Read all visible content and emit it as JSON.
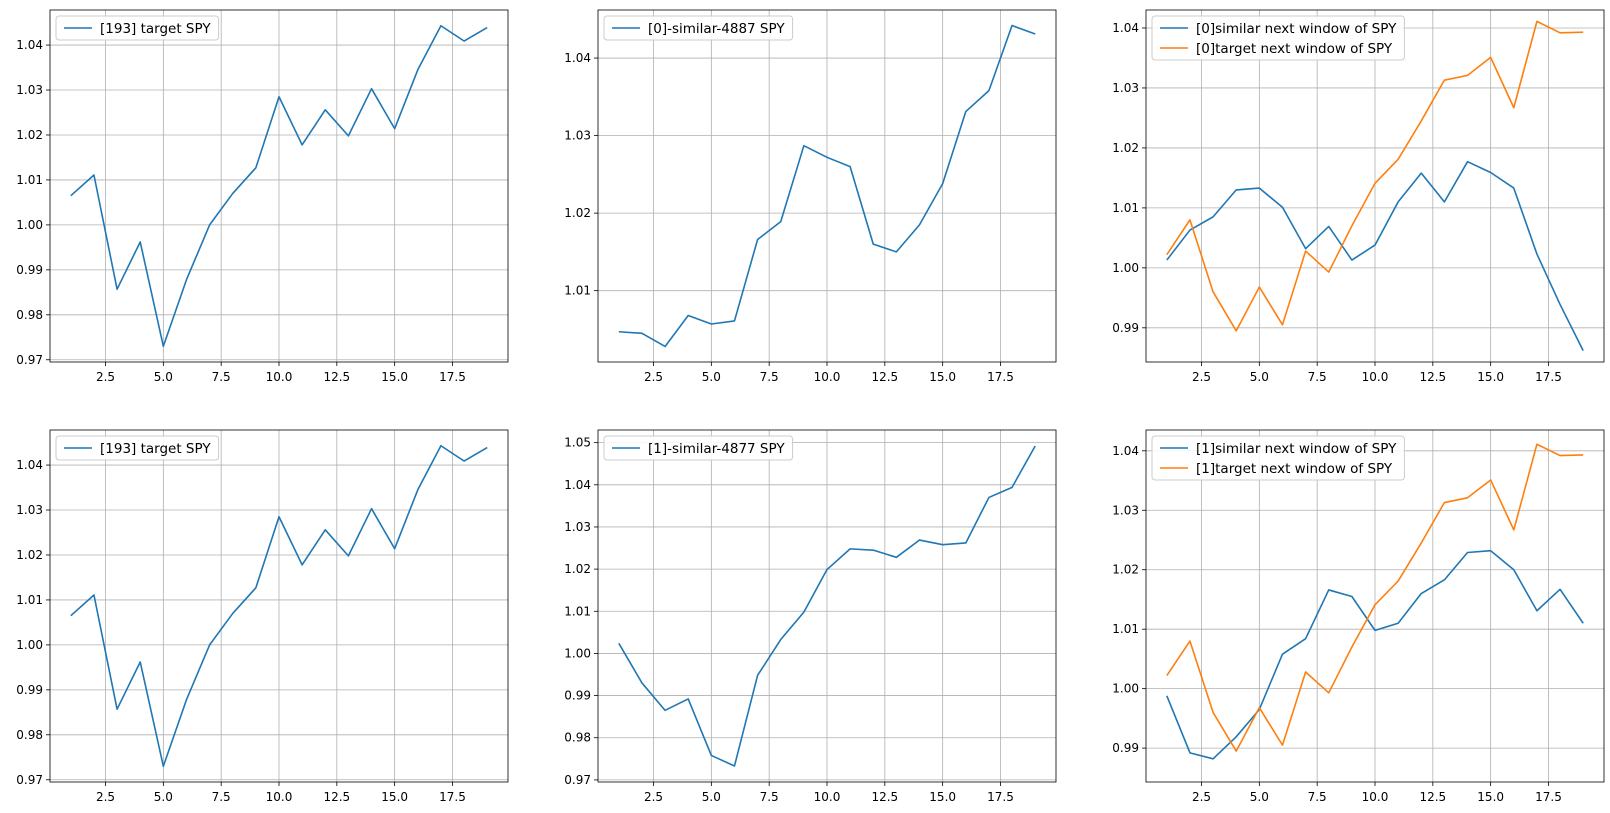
{
  "chart_data": [
    {
      "type": "line",
      "x": [
        1,
        2,
        3,
        4,
        5,
        6,
        7,
        8,
        9,
        10,
        11,
        12,
        13,
        14,
        15,
        16,
        17,
        18,
        19
      ],
      "series": [
        {
          "name": "[193] target SPY",
          "color": "#1f77b4",
          "values": [
            1.0065,
            1.0111,
            0.9857,
            0.9962,
            0.973,
            0.9878,
            1.0,
            1.007,
            1.0127,
            1.0285,
            1.0178,
            1.0256,
            1.0198,
            1.0303,
            1.0214,
            1.0345,
            1.0443,
            1.0409,
            1.0439
          ]
        }
      ],
      "xticks": [
        2.5,
        5.0,
        7.5,
        10.0,
        12.5,
        15.0,
        17.5
      ],
      "xtick_labels": [
        "2.5",
        "5.0",
        "7.5",
        "10.0",
        "12.5",
        "15.0",
        "17.5"
      ],
      "yticks": [
        0.97,
        0.98,
        0.99,
        1.0,
        1.01,
        1.02,
        1.03,
        1.04
      ],
      "ytick_labels": [
        "0.97",
        "0.98",
        "0.99",
        "1.00",
        "1.01",
        "1.02",
        "1.03",
        "1.04"
      ],
      "xlim": [
        0.1,
        19.9
      ],
      "ylim": [
        0.9695,
        1.0478
      ],
      "grid": true,
      "legend": "upper-left"
    },
    {
      "type": "line",
      "x": [
        1,
        2,
        3,
        4,
        5,
        6,
        7,
        8,
        9,
        10,
        11,
        12,
        13,
        14,
        15,
        16,
        17,
        18,
        19
      ],
      "series": [
        {
          "name": "[0]-similar-4887 SPY",
          "color": "#1f77b4",
          "values": [
            1.0047,
            1.0045,
            1.0028,
            1.0068,
            1.0057,
            1.0061,
            1.0166,
            1.0189,
            1.0287,
            1.0272,
            1.026,
            1.016,
            1.015,
            1.0185,
            1.0238,
            1.0331,
            1.0358,
            1.0442,
            1.0431
          ]
        }
      ],
      "xticks": [
        2.5,
        5.0,
        7.5,
        10.0,
        12.5,
        15.0,
        17.5
      ],
      "xtick_labels": [
        "2.5",
        "5.0",
        "7.5",
        "10.0",
        "12.5",
        "15.0",
        "17.5"
      ],
      "yticks": [
        1.01,
        1.02,
        1.03,
        1.04
      ],
      "ytick_labels": [
        "1.01",
        "1.02",
        "1.03",
        "1.04"
      ],
      "xlim": [
        0.1,
        19.9
      ],
      "ylim": [
        1.0008,
        1.0462
      ],
      "grid": true,
      "legend": "upper-left"
    },
    {
      "type": "line",
      "x": [
        1,
        2,
        3,
        4,
        5,
        6,
        7,
        8,
        9,
        10,
        11,
        12,
        13,
        14,
        15,
        16,
        17,
        18,
        19
      ],
      "series": [
        {
          "name": "[0]similar next window of SPY",
          "color": "#1f77b4",
          "values": [
            1.0013,
            1.0063,
            1.0085,
            1.013,
            1.0133,
            1.0101,
            1.0032,
            1.0069,
            1.0013,
            1.0038,
            1.011,
            1.0158,
            1.011,
            1.0177,
            1.0159,
            1.0133,
            1.0023,
            0.9939,
            0.9862
          ]
        },
        {
          "name": "[0]target next window of SPY",
          "color": "#ff7f0e",
          "values": [
            1.0022,
            1.008,
            0.996,
            0.9895,
            0.9968,
            0.9905,
            1.0028,
            0.9993,
            1.007,
            1.0141,
            1.0181,
            1.0245,
            1.0313,
            1.0321,
            1.0351,
            1.0267,
            1.0411,
            1.0392,
            1.0393
          ]
        }
      ],
      "xticks": [
        2.5,
        5.0,
        7.5,
        10.0,
        12.5,
        15.0,
        17.5
      ],
      "xtick_labels": [
        "2.5",
        "5.0",
        "7.5",
        "10.0",
        "12.5",
        "15.0",
        "17.5"
      ],
      "yticks": [
        0.99,
        1.0,
        1.01,
        1.02,
        1.03,
        1.04
      ],
      "ytick_labels": [
        "0.99",
        "1.00",
        "1.01",
        "1.02",
        "1.03",
        "1.04"
      ],
      "xlim": [
        0.1,
        19.9
      ],
      "ylim": [
        0.9843,
        1.043
      ],
      "grid": true,
      "legend": "upper-left"
    },
    {
      "type": "line",
      "x": [
        1,
        2,
        3,
        4,
        5,
        6,
        7,
        8,
        9,
        10,
        11,
        12,
        13,
        14,
        15,
        16,
        17,
        18,
        19
      ],
      "series": [
        {
          "name": "[193] target SPY",
          "color": "#1f77b4",
          "values": [
            1.0065,
            1.0111,
            0.9857,
            0.9962,
            0.973,
            0.9878,
            1.0,
            1.007,
            1.0127,
            1.0285,
            1.0178,
            1.0256,
            1.0198,
            1.0303,
            1.0214,
            1.0345,
            1.0443,
            1.0409,
            1.0439
          ]
        }
      ],
      "xticks": [
        2.5,
        5.0,
        7.5,
        10.0,
        12.5,
        15.0,
        17.5
      ],
      "xtick_labels": [
        "2.5",
        "5.0",
        "7.5",
        "10.0",
        "12.5",
        "15.0",
        "17.5"
      ],
      "yticks": [
        0.97,
        0.98,
        0.99,
        1.0,
        1.01,
        1.02,
        1.03,
        1.04
      ],
      "ytick_labels": [
        "0.97",
        "0.98",
        "0.99",
        "1.00",
        "1.01",
        "1.02",
        "1.03",
        "1.04"
      ],
      "xlim": [
        0.1,
        19.9
      ],
      "ylim": [
        0.9695,
        1.0478
      ],
      "grid": true,
      "legend": "upper-left"
    },
    {
      "type": "line",
      "x": [
        1,
        2,
        3,
        4,
        5,
        6,
        7,
        8,
        9,
        10,
        11,
        12,
        13,
        14,
        15,
        16,
        17,
        18,
        19
      ],
      "series": [
        {
          "name": "[1]-similar-4877 SPY",
          "color": "#1f77b4",
          "values": [
            1.0024,
            0.993,
            0.9865,
            0.9892,
            0.9758,
            0.9733,
            0.9948,
            1.0033,
            1.0098,
            1.0199,
            1.0248,
            1.0245,
            1.0228,
            1.0269,
            1.0258,
            1.0262,
            1.037,
            1.0394,
            1.0492
          ]
        }
      ],
      "xticks": [
        2.5,
        5.0,
        7.5,
        10.0,
        12.5,
        15.0,
        17.5
      ],
      "xtick_labels": [
        "2.5",
        "5.0",
        "7.5",
        "10.0",
        "12.5",
        "15.0",
        "17.5"
      ],
      "yticks": [
        0.97,
        0.98,
        0.99,
        1.0,
        1.01,
        1.02,
        1.03,
        1.04,
        1.05
      ],
      "ytick_labels": [
        "0.97",
        "0.98",
        "0.99",
        "1.00",
        "1.01",
        "1.02",
        "1.03",
        "1.04",
        "1.05"
      ],
      "xlim": [
        0.1,
        19.9
      ],
      "ylim": [
        0.9695,
        1.053
      ],
      "grid": true,
      "legend": "upper-left"
    },
    {
      "type": "line",
      "x": [
        1,
        2,
        3,
        4,
        5,
        6,
        7,
        8,
        9,
        10,
        11,
        12,
        13,
        14,
        15,
        16,
        17,
        18,
        19
      ],
      "series": [
        {
          "name": "[1]similar next window of SPY",
          "color": "#1f77b4",
          "values": [
            0.9988,
            0.9892,
            0.9882,
            0.9919,
            0.9965,
            1.0058,
            1.0084,
            1.0166,
            1.0155,
            1.0098,
            1.011,
            1.016,
            1.0183,
            1.0229,
            1.0232,
            1.02,
            1.0131,
            1.0167,
            1.011
          ]
        },
        {
          "name": "[1]target next window of SPY",
          "color": "#ff7f0e",
          "values": [
            1.0022,
            1.008,
            0.996,
            0.9895,
            0.9968,
            0.9905,
            1.0028,
            0.9993,
            1.007,
            1.0141,
            1.0181,
            1.0245,
            1.0313,
            1.0321,
            1.0351,
            1.0267,
            1.0411,
            1.0392,
            1.0393
          ]
        }
      ],
      "xticks": [
        2.5,
        5.0,
        7.5,
        10.0,
        12.5,
        15.0,
        17.5
      ],
      "xtick_labels": [
        "2.5",
        "5.0",
        "7.5",
        "10.0",
        "12.5",
        "15.0",
        "17.5"
      ],
      "yticks": [
        0.99,
        1.0,
        1.01,
        1.02,
        1.03,
        1.04
      ],
      "ytick_labels": [
        "0.99",
        "1.00",
        "1.01",
        "1.02",
        "1.03",
        "1.04"
      ],
      "xlim": [
        0.1,
        19.9
      ],
      "ylim": [
        0.9843,
        1.0435
      ],
      "grid": true,
      "legend": "upper-left"
    }
  ]
}
